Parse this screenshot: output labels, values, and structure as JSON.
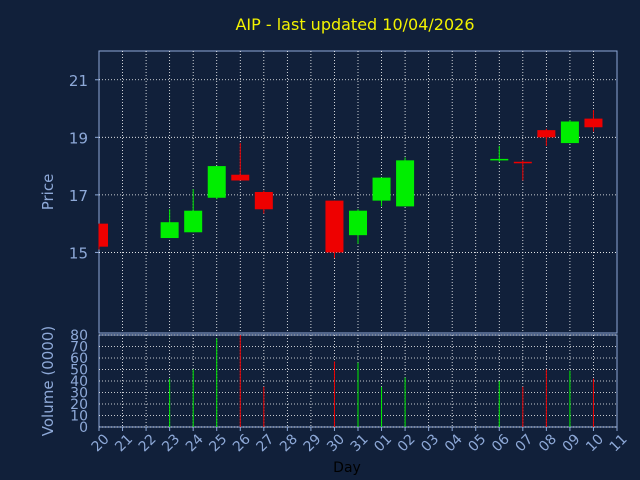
{
  "chart_data": {
    "type": "candlestick",
    "title": "AIP - last updated 10/04/2026",
    "xlabel": "Day",
    "price_ylabel": "Price",
    "volume_ylabel": "Volume (0000)",
    "price_ylim": [
      12.2,
      22
    ],
    "price_ticks": [
      "15",
      "17",
      "19",
      "21"
    ],
    "volume_ylim": [
      0,
      80
    ],
    "volume_ticks": [
      "0",
      "10",
      "20",
      "30",
      "40",
      "50",
      "60",
      "70",
      "80"
    ],
    "x_ticks": [
      "20",
      "21",
      "22",
      "23",
      "24",
      "25",
      "26",
      "27",
      "28",
      "29",
      "30",
      "31",
      "01",
      "02",
      "03",
      "04",
      "05",
      "06",
      "07",
      "08",
      "09",
      "10",
      "11"
    ],
    "grid": true,
    "colors": {
      "up": "#00ee00",
      "down": "#ee0000",
      "background": "#11203a",
      "panel": "#11203a",
      "grid": "#ffffff",
      "title": "#f2f200",
      "text": "#8ea9d8"
    },
    "candles": [
      {
        "day": "20",
        "open": 16.0,
        "high": 16.0,
        "low": 15.1,
        "close": 15.2,
        "volume": 0
      },
      {
        "day": "23",
        "open": 15.5,
        "high": 16.5,
        "low": 15.5,
        "close": 16.05,
        "volume": 42
      },
      {
        "day": "24",
        "open": 15.7,
        "high": 17.2,
        "low": 15.7,
        "close": 16.45,
        "volume": 50
      },
      {
        "day": "25",
        "open": 16.9,
        "high": 18.0,
        "low": 16.85,
        "close": 18.0,
        "volume": 77
      },
      {
        "day": "26",
        "open": 17.7,
        "high": 18.8,
        "low": 17.5,
        "close": 17.5,
        "volume": 80
      },
      {
        "day": "27",
        "open": 17.1,
        "high": 17.15,
        "low": 16.35,
        "close": 16.5,
        "volume": 35
      },
      {
        "day": "30",
        "open": 16.8,
        "high": 16.8,
        "low": 14.8,
        "close": 15.0,
        "volume": 57
      },
      {
        "day": "31",
        "open": 15.6,
        "high": 16.5,
        "low": 15.3,
        "close": 16.45,
        "volume": 56
      },
      {
        "day": "01",
        "open": 16.8,
        "high": 17.6,
        "low": 16.6,
        "close": 17.6,
        "volume": 35
      },
      {
        "day": "02",
        "open": 16.6,
        "high": 18.3,
        "low": 16.6,
        "close": 18.2,
        "volume": 43
      },
      {
        "day": "06",
        "open": 18.2,
        "high": 18.7,
        "low": 18.15,
        "close": 18.25,
        "volume": 40
      },
      {
        "day": "07",
        "open": 18.15,
        "high": 18.2,
        "low": 17.5,
        "close": 18.1,
        "volume": 35
      },
      {
        "day": "08",
        "open": 19.25,
        "high": 19.3,
        "low": 18.7,
        "close": 19.0,
        "volume": 50
      },
      {
        "day": "09",
        "open": 18.8,
        "high": 19.6,
        "low": 18.8,
        "close": 19.55,
        "volume": 49
      },
      {
        "day": "10",
        "open": 19.65,
        "high": 19.95,
        "low": 19.2,
        "close": 19.35,
        "volume": 42
      }
    ]
  }
}
